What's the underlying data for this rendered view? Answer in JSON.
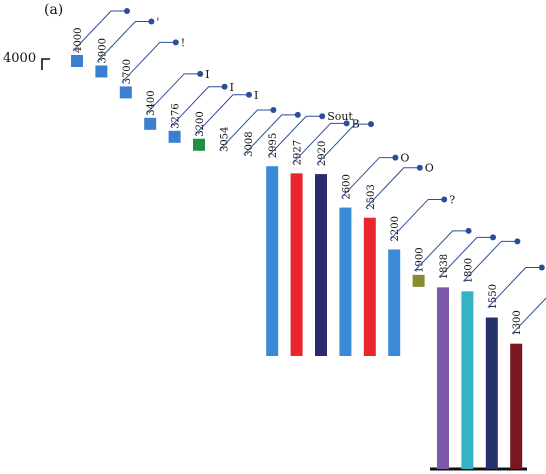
{
  "panel_label": "(a)",
  "axis_tick_label": "4000",
  "chart_data": {
    "type": "bar",
    "title": "",
    "xlabel": "",
    "ylabel": "",
    "bars": [
      {
        "value": 4000,
        "value_label": "4000",
        "label": "",
        "color": "#3b7fd0",
        "marker": true
      },
      {
        "value": 3900,
        "value_label": "3900",
        "label": "'",
        "color": "#3b7fd0",
        "marker": true
      },
      {
        "value": 3700,
        "value_label": "3700",
        "label": "!",
        "color": "#3b7fd0",
        "marker": true
      },
      {
        "value": 3400,
        "value_label": "3400",
        "label": "I",
        "color": "#3b7fd0",
        "marker": true
      },
      {
        "value": 3276,
        "value_label": "3276",
        "label": "I",
        "color": "#3b7fd0",
        "marker": true
      },
      {
        "value": 3200,
        "value_label": "3200",
        "label": "I",
        "color": "#1e8f45",
        "marker": true
      },
      {
        "value": 3054,
        "value_label": "3054",
        "label": "",
        "color": "#3b7fd0",
        "marker": false
      },
      {
        "value": 3008,
        "value_label": "3008",
        "label": "",
        "color": "#3b7fd0",
        "marker": false
      },
      {
        "value": 2995,
        "value_label": "2995",
        "label": "Sout",
        "color": "#3a8ad8",
        "marker": false
      },
      {
        "value": 2927,
        "value_label": "2927",
        "label": "B",
        "color": "#e8262b",
        "marker": false
      },
      {
        "value": 2920,
        "value_label": "2920",
        "label": "",
        "color": "#2b2a6e",
        "marker": false
      },
      {
        "value": 2600,
        "value_label": "2600",
        "label": "O",
        "color": "#3a8ad8",
        "marker": false
      },
      {
        "value": 2503,
        "value_label": "2503",
        "label": "O",
        "color": "#e8262b",
        "marker": false
      },
      {
        "value": 2200,
        "value_label": "2200",
        "label": "?",
        "color": "#3a8ad8",
        "marker": false
      },
      {
        "value": 1900,
        "value_label": "1900",
        "label": "",
        "color": "#8a8a34",
        "marker": true
      },
      {
        "value": 1838,
        "value_label": "1838",
        "label": "",
        "color": "#7a5aa8",
        "marker": false
      },
      {
        "value": 1800,
        "value_label": "1800",
        "label": "",
        "color": "#36b2c6",
        "marker": false
      },
      {
        "value": 1550,
        "value_label": "1550",
        "label": "",
        "color": "#26306a",
        "marker": false
      },
      {
        "value": 1300,
        "value_label": "1300",
        "label": "",
        "color": "#7a1620",
        "marker": false
      }
    ]
  }
}
